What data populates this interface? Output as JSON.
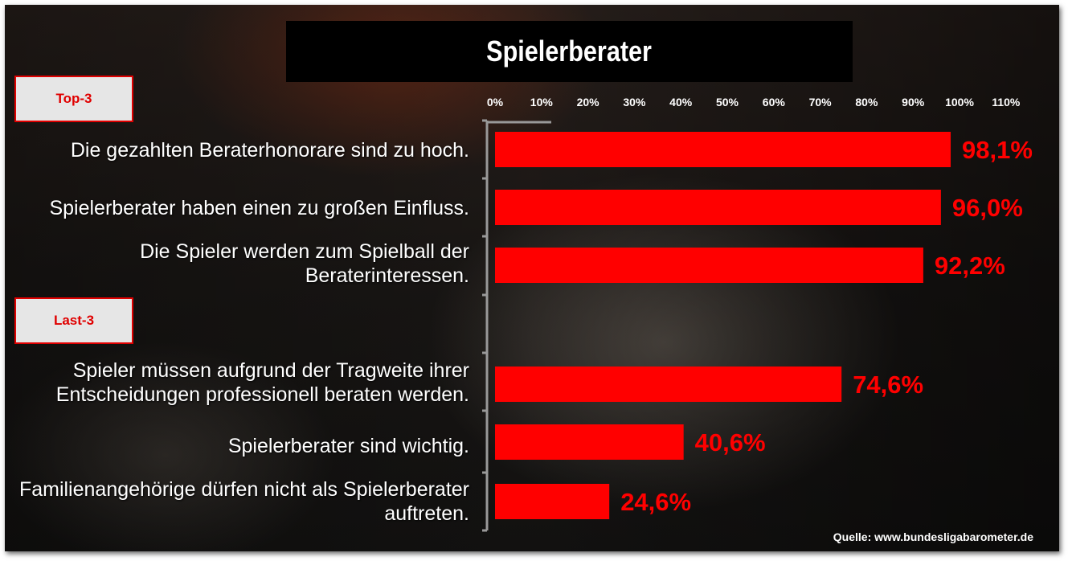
{
  "title": "Spielerberater",
  "groups": {
    "top": "Top-3",
    "last": "Last-3"
  },
  "source": "Quelle: www.bundesligabarometer.de",
  "colors": {
    "bar": "#ff0000",
    "axis": "#999999"
  },
  "chart_data": {
    "type": "bar",
    "orientation": "horizontal",
    "title": "Spielerberater",
    "ticks": [
      "0%",
      "10%",
      "20%",
      "30%",
      "40%",
      "50%",
      "60%",
      "70%",
      "80%",
      "90%",
      "100%",
      "110%"
    ],
    "xlim": [
      0,
      110
    ],
    "categories": [
      "Die gezahlten Beraterhonorare sind zu hoch.",
      "Spielerberater haben einen zu großen Einfluss.",
      "Die Spieler werden zum Spielball der Beraterinteressen.",
      "Spieler müssen aufgrund der Tragweite ihrer Entscheidungen professionell beraten werden.",
      "Spielerberater sind wichtig.",
      "Familienangehörige dürfen nicht als Spielerberater auftreten."
    ],
    "values": [
      98.1,
      96.0,
      92.2,
      74.6,
      40.6,
      24.6
    ],
    "value_labels": [
      "98,1%",
      "96,0%",
      "92,2%",
      "74,6%",
      "40,6%",
      "24,6%"
    ],
    "grid": false
  }
}
